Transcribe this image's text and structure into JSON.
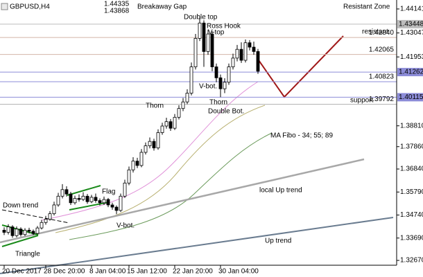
{
  "chart_data": {
    "type": "candlestick",
    "title": "GBPUSD,H4",
    "categories": [
      "20 Dec 2017",
      null,
      null,
      null,
      null,
      null,
      null,
      null,
      null,
      null,
      "28 Dec 20:00",
      null,
      null,
      null,
      null,
      null,
      null,
      null,
      null,
      null,
      null,
      "8 Jan 04:00",
      null,
      null,
      null,
      null,
      null,
      null,
      null,
      null,
      "15 Jan 12:00",
      null,
      null,
      null,
      null,
      null,
      null,
      null,
      null,
      null,
      null,
      "22 Jan 20:00",
      null,
      null,
      null,
      null,
      null,
      null,
      null,
      null,
      null,
      null,
      "30 Jan 04:00",
      null,
      null,
      null,
      null,
      null,
      null,
      null,
      null
    ],
    "ohlc": [
      [
        1.3405,
        1.3418,
        1.3383,
        1.3395
      ],
      [
        1.3395,
        1.3432,
        1.3385,
        1.342
      ],
      [
        1.342,
        1.3428,
        1.337,
        1.338
      ],
      [
        1.338,
        1.3422,
        1.3372,
        1.341
      ],
      [
        1.341,
        1.3418,
        1.3376,
        1.3385
      ],
      [
        1.3385,
        1.3414,
        1.3378,
        1.3405
      ],
      [
        1.3405,
        1.3416,
        1.339,
        1.34
      ],
      [
        1.34,
        1.3408,
        1.3382,
        1.339
      ],
      [
        1.339,
        1.3424,
        1.3386,
        1.3415
      ],
      [
        1.3415,
        1.3452,
        1.3408,
        1.344
      ],
      [
        1.344,
        1.347,
        1.343,
        1.3455
      ],
      [
        1.3455,
        1.3492,
        1.3448,
        1.348
      ],
      [
        1.348,
        1.3535,
        1.3472,
        1.352
      ],
      [
        1.352,
        1.3575,
        1.3512,
        1.356
      ],
      [
        1.356,
        1.3615,
        1.355,
        1.359
      ],
      [
        1.359,
        1.3605,
        1.3558,
        1.357
      ],
      [
        1.357,
        1.358,
        1.352,
        1.353
      ],
      [
        1.353,
        1.3562,
        1.3522,
        1.355
      ],
      [
        1.355,
        1.3568,
        1.3535,
        1.3545
      ],
      [
        1.3545,
        1.3578,
        1.3538,
        1.356
      ],
      [
        1.356,
        1.357,
        1.3525,
        1.3535
      ],
      [
        1.3535,
        1.3566,
        1.3528,
        1.3555
      ],
      [
        1.3555,
        1.3572,
        1.353,
        1.354
      ],
      [
        1.354,
        1.355,
        1.3518,
        1.353
      ],
      [
        1.353,
        1.3558,
        1.352,
        1.3545
      ],
      [
        1.3545,
        1.3552,
        1.351,
        1.352
      ],
      [
        1.352,
        1.353,
        1.3498,
        1.351
      ],
      [
        1.351,
        1.3518,
        1.3478,
        1.3495
      ],
      [
        1.3495,
        1.3572,
        1.3488,
        1.356
      ],
      [
        1.356,
        1.3635,
        1.3552,
        1.362
      ],
      [
        1.362,
        1.3695,
        1.361,
        1.368
      ],
      [
        1.368,
        1.3738,
        1.3668,
        1.372
      ],
      [
        1.372,
        1.3735,
        1.3688,
        1.37
      ],
      [
        1.37,
        1.3775,
        1.3692,
        1.376
      ],
      [
        1.376,
        1.3805,
        1.375,
        1.379
      ],
      [
        1.379,
        1.3828,
        1.3778,
        1.381
      ],
      [
        1.381,
        1.3822,
        1.3768,
        1.378
      ],
      [
        1.378,
        1.3865,
        1.3772,
        1.385
      ],
      [
        1.385,
        1.3895,
        1.384,
        1.388
      ],
      [
        1.388,
        1.3918,
        1.3868,
        1.39
      ],
      [
        1.39,
        1.3912,
        1.3858,
        1.387
      ],
      [
        1.387,
        1.3935,
        1.3862,
        1.392
      ],
      [
        1.392,
        1.3975,
        1.391,
        1.396
      ],
      [
        1.396,
        1.4008,
        1.3948,
        1.399
      ],
      [
        1.399,
        1.4048,
        1.398,
        1.403
      ],
      [
        1.403,
        1.417,
        1.402,
        1.415
      ],
      [
        1.415,
        1.43,
        1.4138,
        1.428
      ],
      [
        1.428,
        1.438,
        1.4268,
        1.435
      ],
      [
        1.435,
        1.4362,
        1.415,
        1.422
      ],
      [
        1.422,
        1.432,
        1.4205,
        1.43
      ],
      [
        1.43,
        1.4312,
        1.413,
        1.415
      ],
      [
        1.415,
        1.4165,
        1.408,
        1.41
      ],
      [
        1.41,
        1.4115,
        1.4012,
        1.405
      ],
      [
        1.405,
        1.4098,
        1.403,
        1.408
      ],
      [
        1.408,
        1.4165,
        1.4068,
        1.415
      ],
      [
        1.415,
        1.421,
        1.4138,
        1.419
      ],
      [
        1.419,
        1.425,
        1.4175,
        1.423
      ],
      [
        1.423,
        1.4262,
        1.4168,
        1.418
      ],
      [
        1.418,
        1.4275,
        1.417,
        1.426
      ],
      [
        1.426,
        1.4272,
        1.4225,
        1.424
      ],
      [
        1.424,
        1.4265,
        1.4205,
        1.422
      ],
      [
        1.422,
        1.4232,
        1.4118,
        1.413
      ]
    ],
    "ylim": [
      1.3245,
      1.4455
    ],
    "yticks": [
      1.44141,
      1.43047,
      1.41953,
      {
        "value": 1.3881,
        "label": "1.38810"
      },
      {
        "value": 1.3786,
        "label": "1.37860"
      },
      {
        "value": 1.3684,
        "label": "1.36840"
      },
      {
        "value": 1.3579,
        "label": "1.35790"
      },
      {
        "value": 1.3474,
        "label": "1.34740"
      },
      {
        "value": 1.3369,
        "label": "1.33690"
      },
      {
        "value": 1.3267,
        "label": "1.32670"
      }
    ],
    "levels": [
      {
        "value": 1.43448,
        "label": "1.43448",
        "color": "#bdbdbd",
        "tag": true
      },
      {
        "value": 1.4284,
        "label": "1.42840",
        "color": "#d2b4a8",
        "tag": false
      },
      {
        "value": 1.42065,
        "label": "1.42065",
        "color": "#d2b4a8",
        "tag": false
      },
      {
        "value": 1.41262,
        "label": "1.41262",
        "color": "#8c8cd8",
        "tag": true
      },
      {
        "value": 1.40823,
        "label": "1.40823",
        "color": "#8c8cd8",
        "tag": false
      },
      {
        "value": 1.40115,
        "label": "1.40115",
        "color": "#8c8cd8",
        "tag": true
      },
      {
        "value": 1.39792,
        "label": "1.39792",
        "color": "#b0b0b0",
        "tag": false
      }
    ],
    "annotations": [
      "Breakaway Gap",
      "Resistant Zone",
      "1.44335",
      "1.43868",
      "Double top",
      "Ross Hook",
      "V-top",
      "resistant",
      "V-bot.",
      "Thorn",
      "Thorn",
      "Double Bot.",
      "support",
      "MA Fibo - 34; 55; 89",
      "Flag",
      "Down trend",
      "V-bot.",
      "local  Up trend",
      "Up trend",
      "Triangle"
    ]
  }
}
